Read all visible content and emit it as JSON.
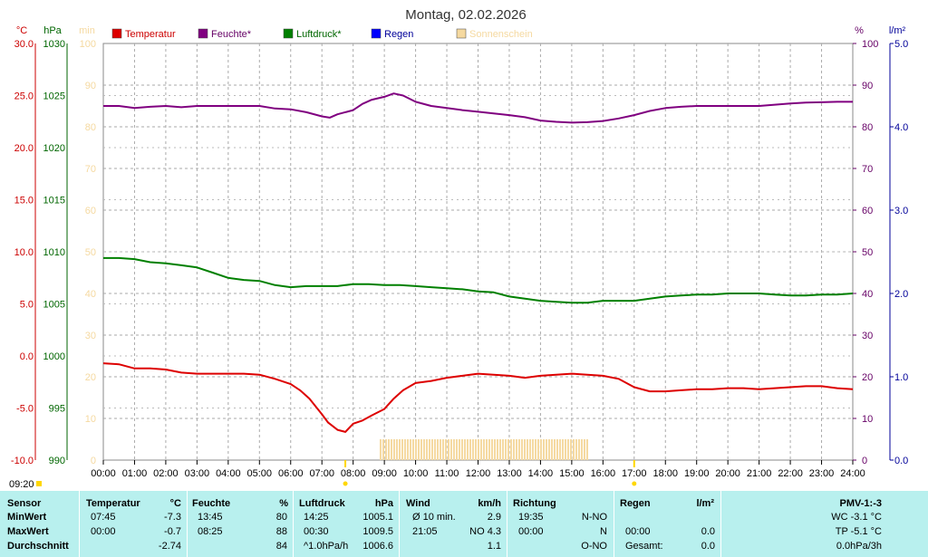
{
  "chart_data": {
    "type": "line",
    "title": "Montag, 02.02.2026",
    "x_unit": "hours",
    "x_ticks": [
      "00:00",
      "01:00",
      "02:00",
      "03:00",
      "04:00",
      "05:00",
      "06:00",
      "07:00",
      "08:00",
      "09:00",
      "10:00",
      "11:00",
      "12:00",
      "13:00",
      "14:00",
      "15:00",
      "16:00",
      "17:00",
      "18:00",
      "19:00",
      "20:00",
      "21:00",
      "22:00",
      "23:00",
      "24:00"
    ],
    "xlim": [
      0,
      24
    ],
    "axes": {
      "temp": {
        "unit": "°C",
        "ticks": [
          "30.0",
          "25.0",
          "20.0",
          "15.0",
          "10.0",
          "5.0",
          "0.0",
          "-5.0",
          "-10.0"
        ],
        "ylim": [
          -10,
          30
        ],
        "color": "#cc0000"
      },
      "press": {
        "unit": "hPa",
        "ticks": [
          "1030",
          "1025",
          "1020",
          "1015",
          "1010",
          "1005",
          "1000",
          "995",
          "990"
        ],
        "ylim": [
          990,
          1030
        ],
        "color": "#006600"
      },
      "sun": {
        "unit": "min",
        "ticks": [
          "100",
          "90",
          "80",
          "70",
          "60",
          "50",
          "40",
          "30",
          "20",
          "10",
          "0"
        ],
        "ylim": [
          0,
          100
        ],
        "color": "#f5d9a0"
      },
      "hum": {
        "unit": "%",
        "ticks": [
          "100",
          "90",
          "80",
          "70",
          "60",
          "50",
          "40",
          "30",
          "20",
          "10",
          "0"
        ],
        "ylim": [
          0,
          100
        ],
        "color": "#660066"
      },
      "rain": {
        "unit": "l/m²",
        "ticks": [
          "5.0",
          "4.0",
          "3.0",
          "2.0",
          "1.0",
          "0.0"
        ],
        "ylim": [
          0,
          5
        ],
        "color": "#000099"
      }
    },
    "legend": [
      {
        "name": "Temperatur",
        "color": "#dd0000",
        "text_color": "#cc0000"
      },
      {
        "name": "Feuchte*",
        "color": "#800080",
        "text_color": "#660066"
      },
      {
        "name": "Luftdruck*",
        "color": "#008000",
        "text_color": "#006600"
      },
      {
        "name": "Regen",
        "color": "#0000ff",
        "text_color": "#000099"
      },
      {
        "name": "Sonnenschein",
        "color": "#f5d9a0",
        "text_color": "#f5d9a0"
      }
    ],
    "series": [
      {
        "name": "Temperatur",
        "axis": "temp",
        "color": "#dd0000",
        "x": [
          0,
          0.5,
          1,
          1.5,
          2,
          2.5,
          3,
          3.5,
          4,
          4.5,
          5,
          5.5,
          6,
          6.3,
          6.6,
          7,
          7.2,
          7.5,
          7.75,
          8,
          8.3,
          8.6,
          9,
          9.3,
          9.6,
          10,
          10.5,
          11,
          11.5,
          12,
          12.5,
          13,
          13.5,
          14,
          14.5,
          15,
          15.5,
          16,
          16.5,
          17,
          17.5,
          18,
          18.5,
          19,
          19.5,
          20,
          20.5,
          21,
          21.5,
          22,
          22.5,
          23,
          23.5,
          24
        ],
        "values": [
          -0.7,
          -0.8,
          -1.2,
          -1.2,
          -1.3,
          -1.6,
          -1.7,
          -1.7,
          -1.7,
          -1.7,
          -1.8,
          -2.2,
          -2.7,
          -3.3,
          -4.1,
          -5.6,
          -6.4,
          -7.1,
          -7.3,
          -6.5,
          -6.2,
          -5.7,
          -5.1,
          -4.1,
          -3.3,
          -2.6,
          -2.4,
          -2.1,
          -1.9,
          -1.7,
          -1.8,
          -1.9,
          -2.1,
          -1.9,
          -1.8,
          -1.7,
          -1.8,
          -1.9,
          -2.2,
          -3.0,
          -3.4,
          -3.4,
          -3.3,
          -3.2,
          -3.2,
          -3.1,
          -3.1,
          -3.2,
          -3.1,
          -3.0,
          -2.9,
          -2.9,
          -3.1,
          -3.2
        ]
      },
      {
        "name": "Feuchte*",
        "axis": "hum",
        "color": "#800080",
        "x": [
          0,
          0.5,
          1,
          1.5,
          2,
          2.5,
          3,
          3.5,
          4,
          4.5,
          5,
          5.5,
          6,
          6.5,
          7,
          7.25,
          7.5,
          8,
          8.3,
          8.6,
          9,
          9.3,
          9.6,
          10,
          10.5,
          11,
          11.5,
          12,
          12.5,
          13,
          13.5,
          14,
          14.5,
          15,
          15.5,
          16,
          16.5,
          17,
          17.5,
          18,
          18.5,
          19,
          19.5,
          20,
          20.5,
          21,
          21.5,
          22,
          22.5,
          23,
          23.5,
          24
        ],
        "values": [
          85,
          85,
          84.5,
          84.8,
          85,
          84.7,
          85,
          85,
          85,
          85,
          85,
          84.4,
          84.2,
          83.5,
          82.5,
          82.2,
          83,
          84,
          85.5,
          86.5,
          87.2,
          88,
          87.5,
          86,
          85,
          84.5,
          84,
          83.6,
          83.2,
          82.8,
          82.3,
          81.5,
          81.2,
          81,
          81.1,
          81.4,
          82,
          82.8,
          83.8,
          84.5,
          84.8,
          85,
          85,
          85,
          85,
          85,
          85.3,
          85.6,
          85.8,
          85.9,
          86,
          86
        ]
      },
      {
        "name": "Luftdruck*",
        "axis": "press",
        "color": "#008000",
        "x": [
          0,
          0.5,
          1,
          1.5,
          2,
          2.5,
          3,
          3.5,
          4,
          4.5,
          5,
          5.5,
          6,
          6.5,
          7,
          7.5,
          8,
          8.5,
          9,
          9.5,
          10,
          10.5,
          11,
          11.5,
          12,
          12.5,
          13,
          13.5,
          14,
          14.5,
          15,
          15.5,
          16,
          16.5,
          17,
          17.5,
          18,
          18.5,
          19,
          19.5,
          20,
          20.5,
          21,
          21.5,
          22,
          22.5,
          23,
          23.5,
          24
        ],
        "values": [
          1009.4,
          1009.4,
          1009.3,
          1009.0,
          1008.9,
          1008.7,
          1008.5,
          1008.0,
          1007.5,
          1007.3,
          1007.2,
          1006.8,
          1006.6,
          1006.7,
          1006.7,
          1006.7,
          1006.9,
          1006.9,
          1006.8,
          1006.8,
          1006.7,
          1006.6,
          1006.5,
          1006.4,
          1006.2,
          1006.1,
          1005.7,
          1005.5,
          1005.3,
          1005.2,
          1005.1,
          1005.1,
          1005.3,
          1005.3,
          1005.3,
          1005.5,
          1005.7,
          1005.8,
          1005.9,
          1005.9,
          1006.0,
          1006.0,
          1006.0,
          1005.9,
          1005.8,
          1005.8,
          1005.9,
          1005.9,
          1006.0
        ]
      },
      {
        "name": "Sonnenschein",
        "axis": "sun",
        "color": "#f5d9a0",
        "type": "bar",
        "x_range": [
          8.85,
          15.55
        ],
        "values": [
          5
        ]
      }
    ],
    "markers": [
      {
        "x": 7.75,
        "color": "#ffd700"
      },
      {
        "x": 17.0,
        "color": "#ffd700"
      }
    ],
    "grid": true,
    "time_label": "09:20"
  },
  "table": {
    "headers": {
      "sensor": "Sensor",
      "temp": "Temperatur",
      "temp_unit": "°C",
      "hum": "Feuchte",
      "hum_unit": "%",
      "press": "Luftdruck",
      "press_unit": "hPa",
      "wind": "Wind",
      "wind_unit": "km/h",
      "dir": "Richtung",
      "rain": "Regen",
      "rain_unit": "l/m²",
      "pmv": "PMV-1:-3"
    },
    "rows": [
      {
        "label": "MinWert",
        "temp_t": "07:45",
        "temp_v": "-7.3",
        "hum_t": "13:45",
        "hum_v": "80",
        "press_t": "14:25",
        "press_v": "1005.1",
        "wind_t": "Ø 10 min.",
        "wind_v": "2.9",
        "dir_t": "19:35",
        "dir_v": "N-NO",
        "rain_t": "",
        "rain_v": "",
        "pmv": "WC -3.1 °C"
      },
      {
        "label": "MaxWert",
        "temp_t": "00:00",
        "temp_v": "-0.7",
        "hum_t": "08:25",
        "hum_v": "88",
        "press_t": "00:30",
        "press_v": "1009.5",
        "wind_t": "21:05",
        "wind_v": "NO 4.3",
        "dir_t": "00:00",
        "dir_v": "N",
        "rain_t": "00:00",
        "rain_v": "0.0",
        "pmv": "TP -5.1 °C"
      },
      {
        "label": "Durchschnitt",
        "temp_t": "",
        "temp_v": "-2.74",
        "hum_t": "",
        "hum_v": "84",
        "press_t": "^1.0hPa/h",
        "press_v": "1006.6",
        "wind_t": "",
        "wind_v": "1.1",
        "dir_t": "",
        "dir_v": "O-NO",
        "rain_t": "Gesamt:",
        "rain_v": "0.0",
        "pmv": "0.0hPa/3h"
      }
    ]
  }
}
